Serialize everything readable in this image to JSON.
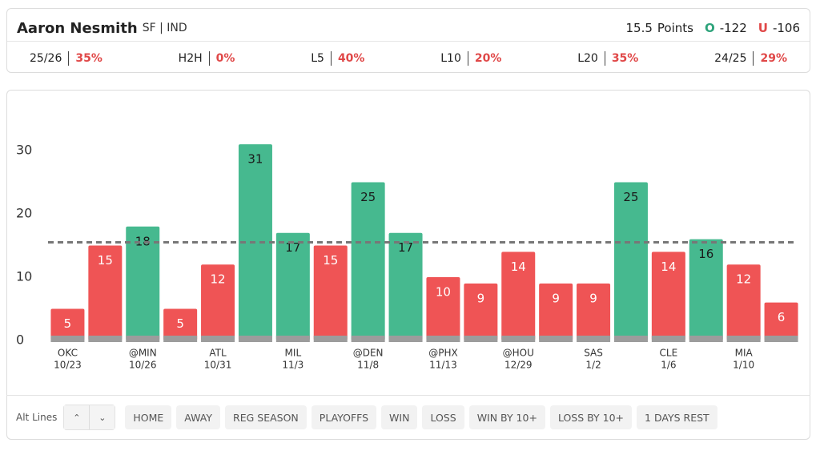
{
  "header": {
    "name": "Aaron Nesmith",
    "position_team": "SF | IND",
    "line_unit": "Points",
    "over_label": "O",
    "over_odds": "-122",
    "under_label": "U",
    "under_odds": "-106",
    "stats": [
      {
        "label": "25/26",
        "value": "35%"
      },
      {
        "label": "H2H",
        "value": "0%"
      },
      {
        "label": "L5",
        "value": "40%"
      },
      {
        "label": "L10",
        "value": "20%"
      },
      {
        "label": "L20",
        "value": "35%"
      },
      {
        "label": "24/25",
        "value": "29%"
      }
    ]
  },
  "chart_data": {
    "type": "bar",
    "categories": [
      "OKC",
      null,
      "@MIN",
      null,
      "ATL",
      null,
      "MIL",
      null,
      "@DEN",
      null,
      "@PHX",
      null,
      "@HOU",
      null,
      "SAS",
      null,
      "CLE",
      null,
      "MIA",
      null
    ],
    "dates": [
      "10/23",
      null,
      "10/26",
      null,
      "10/31",
      null,
      "11/3",
      null,
      "11/8",
      null,
      "11/13",
      null,
      "12/29",
      null,
      "1/2",
      null,
      "1/6",
      null,
      "1/10",
      null
    ],
    "values": [
      5,
      15,
      18,
      5,
      12,
      31,
      17,
      15,
      25,
      17,
      10,
      9,
      14,
      9,
      9,
      25,
      14,
      16,
      12,
      6
    ],
    "line": 15.5,
    "over_color": "#46b98f",
    "under_color": "#ef5455",
    "ylim": [
      0,
      35
    ],
    "yticks": [
      0,
      10,
      20,
      30
    ]
  },
  "footer": {
    "alt_lines": "Alt Lines",
    "filters": [
      "HOME",
      "AWAY",
      "REG SEASON",
      "PLAYOFFS",
      "WIN",
      "LOSS",
      "WIN BY 10+",
      "LOSS BY 10+",
      "1 DAYS REST"
    ]
  }
}
